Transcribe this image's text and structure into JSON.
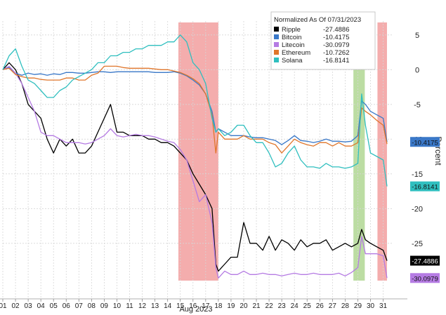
{
  "chart_data": {
    "type": "line",
    "title": "",
    "xlabel": "",
    "x_sublabel": "Aug 2023",
    "ylabel": "Percent",
    "ylim": [
      -33,
      7
    ],
    "yticks": [
      5,
      0,
      -5,
      -10,
      -15,
      -20,
      -25
    ],
    "xlim": [
      1,
      31.8
    ],
    "x_ticks": [
      "01",
      "02",
      "03",
      "04",
      "05",
      "06",
      "07",
      "08",
      "09",
      "10",
      "11",
      "12",
      "13",
      "14",
      "15",
      "16",
      "17",
      "18",
      "19",
      "20",
      "21",
      "22",
      "23",
      "24",
      "25",
      "26",
      "27",
      "28",
      "29",
      "30",
      "31"
    ],
    "grid": true,
    "legend": {
      "placement": "top-right",
      "title": "Normalized As Of 07/31/2023"
    },
    "highlights": [
      {
        "x0": 14.85,
        "x1": 18.0,
        "color": "#f08a8a"
      },
      {
        "x0": 28.65,
        "x1": 29.55,
        "color": "#9fce7c"
      },
      {
        "x0": 30.55,
        "x1": 31.3,
        "color": "#f08a8a"
      }
    ],
    "series": [
      {
        "name": "Ripple",
        "legend_value": "-27.4886",
        "color": "#000000",
        "last_label": "-27.4886",
        "x": [
          1,
          1.5,
          2,
          2.5,
          3,
          3.5,
          4,
          4.5,
          5,
          5.5,
          6,
          6.5,
          7,
          7.5,
          8,
          8.5,
          9,
          9.5,
          10,
          10.5,
          11,
          11.5,
          12,
          12.5,
          13,
          13.5,
          14,
          14.5,
          15,
          15.5,
          16,
          16.5,
          17,
          17.5,
          17.8,
          18,
          18.5,
          19,
          19.5,
          20,
          20.5,
          21,
          21.5,
          22,
          22.5,
          23,
          23.5,
          24,
          24.5,
          25,
          25.5,
          26,
          26.5,
          27,
          27.5,
          28,
          28.5,
          29,
          29.3,
          29.6,
          30,
          30.5,
          31,
          31.3
        ],
        "values": [
          0,
          1,
          0,
          -2,
          -5,
          -6,
          -7,
          -10,
          -12,
          -10,
          -11,
          -10,
          -12,
          -12,
          -11,
          -9,
          -7,
          -5,
          -9,
          -9,
          -9.5,
          -9.5,
          -9.5,
          -10,
          -10,
          -10.5,
          -10.5,
          -11,
          -12,
          -13,
          -15,
          -16.5,
          -18,
          -20,
          -28,
          -29,
          -28,
          -27,
          -27,
          -22,
          -25,
          -25,
          -26,
          -24,
          -26,
          -24.5,
          -25,
          -26,
          -24.5,
          -25.5,
          -25,
          -25,
          -24.5,
          -26,
          -25.5,
          -25,
          -25.5,
          -25,
          -23,
          -24.5,
          -25,
          -25.5,
          -26,
          -27.5
        ]
      },
      {
        "name": "Bitcoin",
        "legend_value": "-10.4175",
        "color": "#3a78c8",
        "last_label": "-10.4175",
        "x": [
          1,
          1.5,
          2,
          2.5,
          3,
          3.5,
          4,
          4.5,
          5,
          5.5,
          6,
          6.5,
          7,
          7.5,
          8,
          8.5,
          9,
          9.5,
          10,
          10.5,
          11,
          11.5,
          12,
          12.5,
          13,
          13.5,
          14,
          14.5,
          15,
          15.5,
          16,
          16.5,
          17,
          17.5,
          17.8,
          18,
          18.5,
          19,
          19.5,
          20,
          20.5,
          21,
          21.5,
          22,
          22.5,
          23,
          23.5,
          24,
          24.5,
          25,
          25.5,
          26,
          26.5,
          27,
          27.5,
          28,
          28.5,
          29,
          29.3,
          29.6,
          30,
          30.5,
          31,
          31.3
        ],
        "values": [
          0,
          0.3,
          -0.5,
          -0.8,
          -0.5,
          -0.7,
          -0.6,
          -0.8,
          -0.6,
          -0.7,
          -0.4,
          -0.4,
          -0.5,
          -0.5,
          -0.4,
          -0.3,
          -0.3,
          -0.4,
          -0.3,
          -0.3,
          -0.3,
          -0.3,
          -0.3,
          -0.3,
          -0.4,
          -0.4,
          -0.4,
          -0.3,
          -0.5,
          -0.9,
          -1.5,
          -2.2,
          -3.5,
          -6,
          -9,
          -8.5,
          -9,
          -9.5,
          -9.5,
          -9.5,
          -9.7,
          -9.8,
          -9.8,
          -10,
          -10.2,
          -10.8,
          -10.2,
          -9.5,
          -10.2,
          -10.3,
          -10.5,
          -10.3,
          -10,
          -10.3,
          -10.3,
          -10.4,
          -10.3,
          -9.5,
          -4.5,
          -5,
          -6,
          -6.5,
          -7,
          -10.4
        ]
      },
      {
        "name": "Litecoin",
        "legend_value": "-30.0979",
        "color": "#b57be3",
        "last_label": "-30.0979",
        "x": [
          1,
          1.5,
          2,
          2.5,
          3,
          3.5,
          4,
          4.5,
          5,
          5.5,
          6,
          6.5,
          7,
          7.5,
          8,
          8.5,
          9,
          9.5,
          10,
          10.5,
          11,
          11.5,
          12,
          12.5,
          13,
          13.5,
          14,
          14.5,
          15,
          15.5,
          16,
          16.5,
          17,
          17.5,
          17.8,
          18,
          18.5,
          19,
          19.5,
          20,
          20.5,
          21,
          21.5,
          22,
          22.5,
          23,
          23.5,
          24,
          24.5,
          25,
          25.5,
          26,
          26.5,
          27,
          27.5,
          28,
          28.5,
          29,
          29.3,
          29.6,
          30,
          30.5,
          31,
          31.3
        ],
        "values": [
          0,
          0.5,
          -0.5,
          -2,
          -4,
          -6,
          -9,
          -9.5,
          -9.5,
          -10,
          -10.5,
          -10.5,
          -10.5,
          -10.7,
          -10.5,
          -10,
          -9.5,
          -8.5,
          -9.5,
          -9.7,
          -9.5,
          -9.3,
          -9.5,
          -9.5,
          -9.7,
          -10,
          -10.3,
          -10.5,
          -11.5,
          -13,
          -16,
          -19,
          -18,
          -22,
          -28.5,
          -30,
          -29,
          -29.5,
          -29.5,
          -29,
          -29.5,
          -29.5,
          -29.3,
          -29.5,
          -29.5,
          -29.7,
          -29.5,
          -29.3,
          -29.5,
          -29.5,
          -29.3,
          -29.5,
          -29.5,
          -29.5,
          -29.3,
          -29.7,
          -29.2,
          -28.5,
          -24,
          -26.5,
          -26.5,
          -26.5,
          -26.8,
          -30
        ]
      },
      {
        "name": "Ethereum",
        "legend_value": "-10.7262",
        "color": "#e0762b",
        "last_label": "",
        "x": [
          1,
          1.5,
          2,
          2.5,
          3,
          3.5,
          4,
          4.5,
          5,
          5.5,
          6,
          6.5,
          7,
          7.5,
          8,
          8.5,
          9,
          9.5,
          10,
          10.5,
          11,
          11.5,
          12,
          12.5,
          13,
          13.5,
          14,
          14.5,
          15,
          15.5,
          16,
          16.5,
          17,
          17.5,
          17.8,
          18,
          18.5,
          19,
          19.5,
          20,
          20.5,
          21,
          21.5,
          22,
          22.5,
          23,
          23.5,
          24,
          24.5,
          25,
          25.5,
          26,
          26.5,
          27,
          27.5,
          28,
          28.5,
          29,
          29.3,
          29.6,
          30,
          30.5,
          31,
          31.3
        ],
        "values": [
          0,
          0.2,
          -0.7,
          -1,
          -1.2,
          -1.2,
          -1.4,
          -1.5,
          -1.5,
          -1.5,
          -1.2,
          -1.2,
          -1.5,
          -1.5,
          -0.8,
          -0.5,
          0.5,
          0.5,
          0.5,
          0.3,
          0.2,
          0.2,
          0.2,
          0.2,
          0.1,
          0,
          0,
          -0.2,
          -0.4,
          -0.8,
          -1.3,
          -2,
          -3.5,
          -6.5,
          -12,
          -9,
          -10,
          -10,
          -10,
          -9.5,
          -10,
          -10,
          -10,
          -10.5,
          -10.8,
          -12,
          -11,
          -10,
          -10.5,
          -10.8,
          -11,
          -10.5,
          -10.5,
          -11,
          -10.5,
          -11,
          -11,
          -10.5,
          -5.5,
          -6,
          -6.5,
          -7.3,
          -8,
          -10.7
        ]
      },
      {
        "name": "Solana",
        "legend_value": "-16.8141",
        "color": "#2fbfbf",
        "last_label": "-16.8141",
        "x": [
          1,
          1.5,
          2,
          2.5,
          3,
          3.5,
          4,
          4.5,
          5,
          5.5,
          6,
          6.5,
          7,
          7.5,
          8,
          8.5,
          9,
          9.5,
          10,
          10.5,
          11,
          11.5,
          12,
          12.5,
          13,
          13.5,
          14,
          14.5,
          15,
          15.5,
          16,
          16.5,
          17,
          17.5,
          17.8,
          18,
          18.5,
          19,
          19.5,
          20,
          20.5,
          21,
          21.5,
          22,
          22.5,
          23,
          23.5,
          24,
          24.5,
          25,
          25.5,
          26,
          26.5,
          27,
          27.5,
          28,
          28.5,
          29,
          29.3,
          29.6,
          30,
          30.5,
          31,
          31.3
        ],
        "values": [
          0,
          2,
          3,
          0.5,
          -1.5,
          -2,
          -3,
          -4,
          -4,
          -3,
          -2.5,
          -1.5,
          -1,
          -0.5,
          0,
          1,
          1,
          2,
          2,
          2.5,
          2.5,
          3,
          3,
          3.5,
          3.5,
          3.5,
          4,
          4,
          5,
          4,
          1,
          0,
          -2,
          -7,
          -9,
          -8.5,
          -9.5,
          -9,
          -8,
          -8,
          -9.5,
          -10.5,
          -10.5,
          -12,
          -14,
          -13.5,
          -12,
          -11,
          -13,
          -14,
          -14,
          -14.2,
          -13.5,
          -14,
          -14,
          -14.2,
          -14,
          -13.5,
          -3.5,
          -8,
          -12,
          -12.5,
          -13,
          -16.8
        ]
      }
    ]
  }
}
